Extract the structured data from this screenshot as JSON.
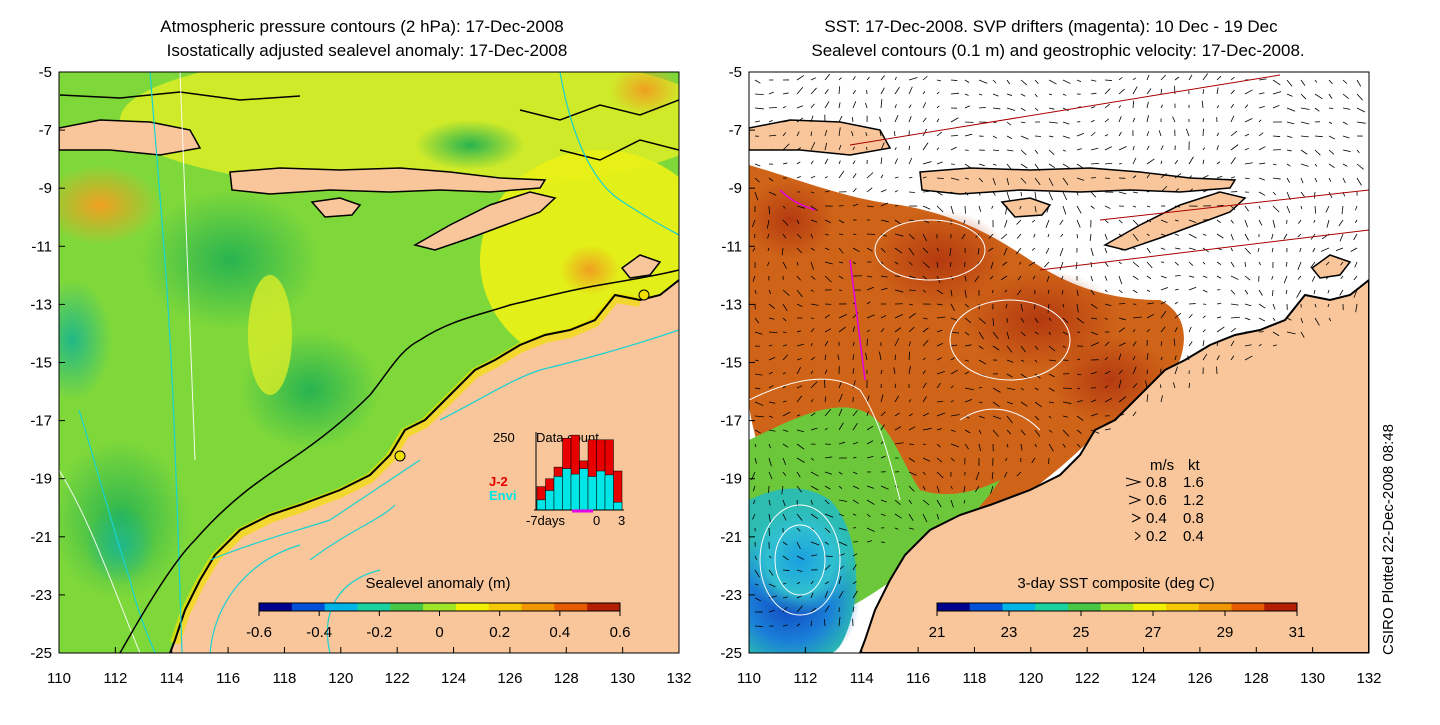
{
  "left_panel": {
    "title_line1": "Atmospheric pressure contours (2 hPa): 17-Dec-2008",
    "title_line2": "Isostatically adjusted sealevel anomaly: 17-Dec-2008",
    "colorbar": {
      "label": "Sealevel anomaly (m)",
      "ticks": [
        "-0.6",
        "-0.4",
        "-0.2",
        "0",
        "0.2",
        "0.4",
        "0.6"
      ],
      "colors": [
        "#00008c",
        "#0050d8",
        "#00b4e6",
        "#19d2a0",
        "#46c846",
        "#a0e628",
        "#f0f000",
        "#f5c800",
        "#f09600",
        "#e65a00",
        "#b41e00"
      ]
    },
    "inset": {
      "title": "Data count",
      "ymax_label": "250",
      "series": [
        {
          "name": "J-2",
          "color": "#e60000"
        },
        {
          "name": "Envi",
          "color": "#00e6e6"
        }
      ],
      "x_labels": [
        "-7days",
        "0",
        "3"
      ],
      "cyan_fraction": [
        0.13,
        0.25,
        0.43,
        0.53,
        0.46,
        0.53,
        0.43,
        0.5,
        0.45,
        0.1
      ],
      "red_fraction": [
        0.3,
        0.4,
        0.55,
        0.92,
        0.96,
        0.63,
        0.9,
        0.9,
        0.9,
        0.5
      ]
    }
  },
  "right_panel": {
    "title_line1": "SST: 17-Dec-2008. SVP drifters (magenta): 10 Dec - 19 Dec",
    "title_line2": "Sealevel contours (0.1 m) and geostrophic velocity: 17-Dec-2008.",
    "colorbar": {
      "label": "3-day SST composite (deg C)",
      "ticks": [
        "21",
        "23",
        "25",
        "27",
        "29",
        "31"
      ],
      "colors": [
        "#00008c",
        "#0050d8",
        "#00b4e6",
        "#19d2a0",
        "#46c846",
        "#a0e628",
        "#f0f000",
        "#f5c800",
        "#f09600",
        "#e65a00",
        "#b41e00"
      ]
    },
    "velocity_legend": {
      "header_ms": "m/s",
      "header_kt": "kt",
      "rows": [
        {
          "ms": "0.8",
          "kt": "1.6"
        },
        {
          "ms": "0.6",
          "kt": "1.2"
        },
        {
          "ms": "0.4",
          "kt": "0.8"
        },
        {
          "ms": "0.2",
          "kt": "0.4"
        }
      ]
    }
  },
  "axes": {
    "x_ticks": [
      "110",
      "112",
      "114",
      "116",
      "118",
      "120",
      "122",
      "124",
      "126",
      "128",
      "130",
      "132"
    ],
    "y_ticks": [
      "-5",
      "-7",
      "-9",
      "-11",
      "-13",
      "-15",
      "-17",
      "-19",
      "-21",
      "-23",
      "-25"
    ]
  },
  "colors": {
    "land": "#f8c69a",
    "coast": "#000000",
    "isobath": "#19d2d2",
    "drifter": "#e600e6"
  },
  "credit": "CSIRO Plotted 22-Dec-2008 08:48"
}
